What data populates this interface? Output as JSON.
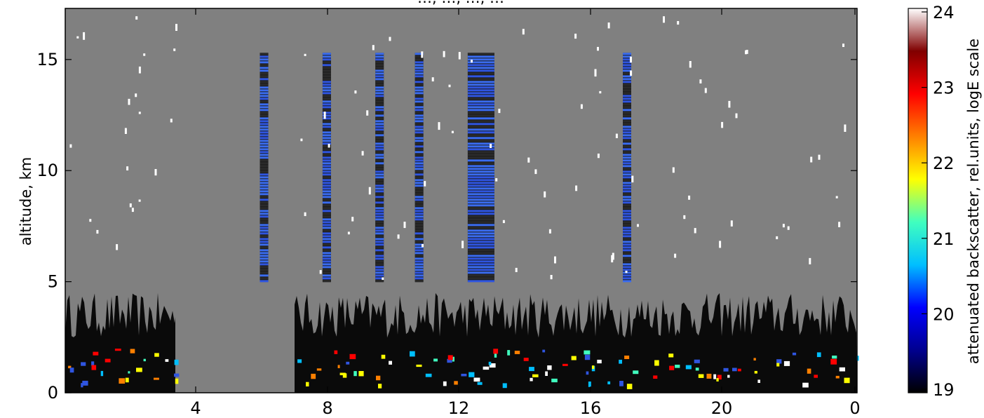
{
  "chart_data": {
    "type": "heatmap",
    "title": "…, …, …, …",
    "ylabel": "altitude, km",
    "xlabel": "",
    "x_ticks": [
      "4",
      "8",
      "12",
      "16",
      "20",
      "0"
    ],
    "y_ticks": [
      "0",
      "5",
      "10",
      "15"
    ],
    "ylim": [
      0,
      17.3
    ],
    "background_value": "no signal (grey)",
    "colorbar": {
      "label": "attenuated backscatter, rel.units, logE scale",
      "ticks": [
        "19",
        "20",
        "21",
        "22",
        "23",
        "24"
      ],
      "range": [
        19,
        24
      ],
      "scale": "logE",
      "colors": [
        "#000000",
        "#00008f",
        "#0000ff",
        "#00bfff",
        "#40ffbf",
        "#ffff00",
        "#ff8000",
        "#ff0000",
        "#800000",
        "#ffffff"
      ]
    },
    "grid": false,
    "features": {
      "boundary_layer_top_km": 4.5,
      "cirrus_columns": [
        {
          "x_hour": 6.9,
          "bottom_km": 5.0,
          "top_km": 15.3
        },
        {
          "x_hour": 8.8,
          "bottom_km": 5.0,
          "top_km": 15.3
        },
        {
          "x_hour": 10.4,
          "bottom_km": 5.0,
          "top_km": 15.3
        },
        {
          "x_hour": 11.6,
          "bottom_km": 5.0,
          "top_km": 15.3
        },
        {
          "x_hour": 13.2,
          "bottom_km": 5.0,
          "top_km": 15.3
        },
        {
          "x_hour": 17.9,
          "bottom_km": 5.0,
          "top_km": 15.3
        }
      ]
    }
  }
}
